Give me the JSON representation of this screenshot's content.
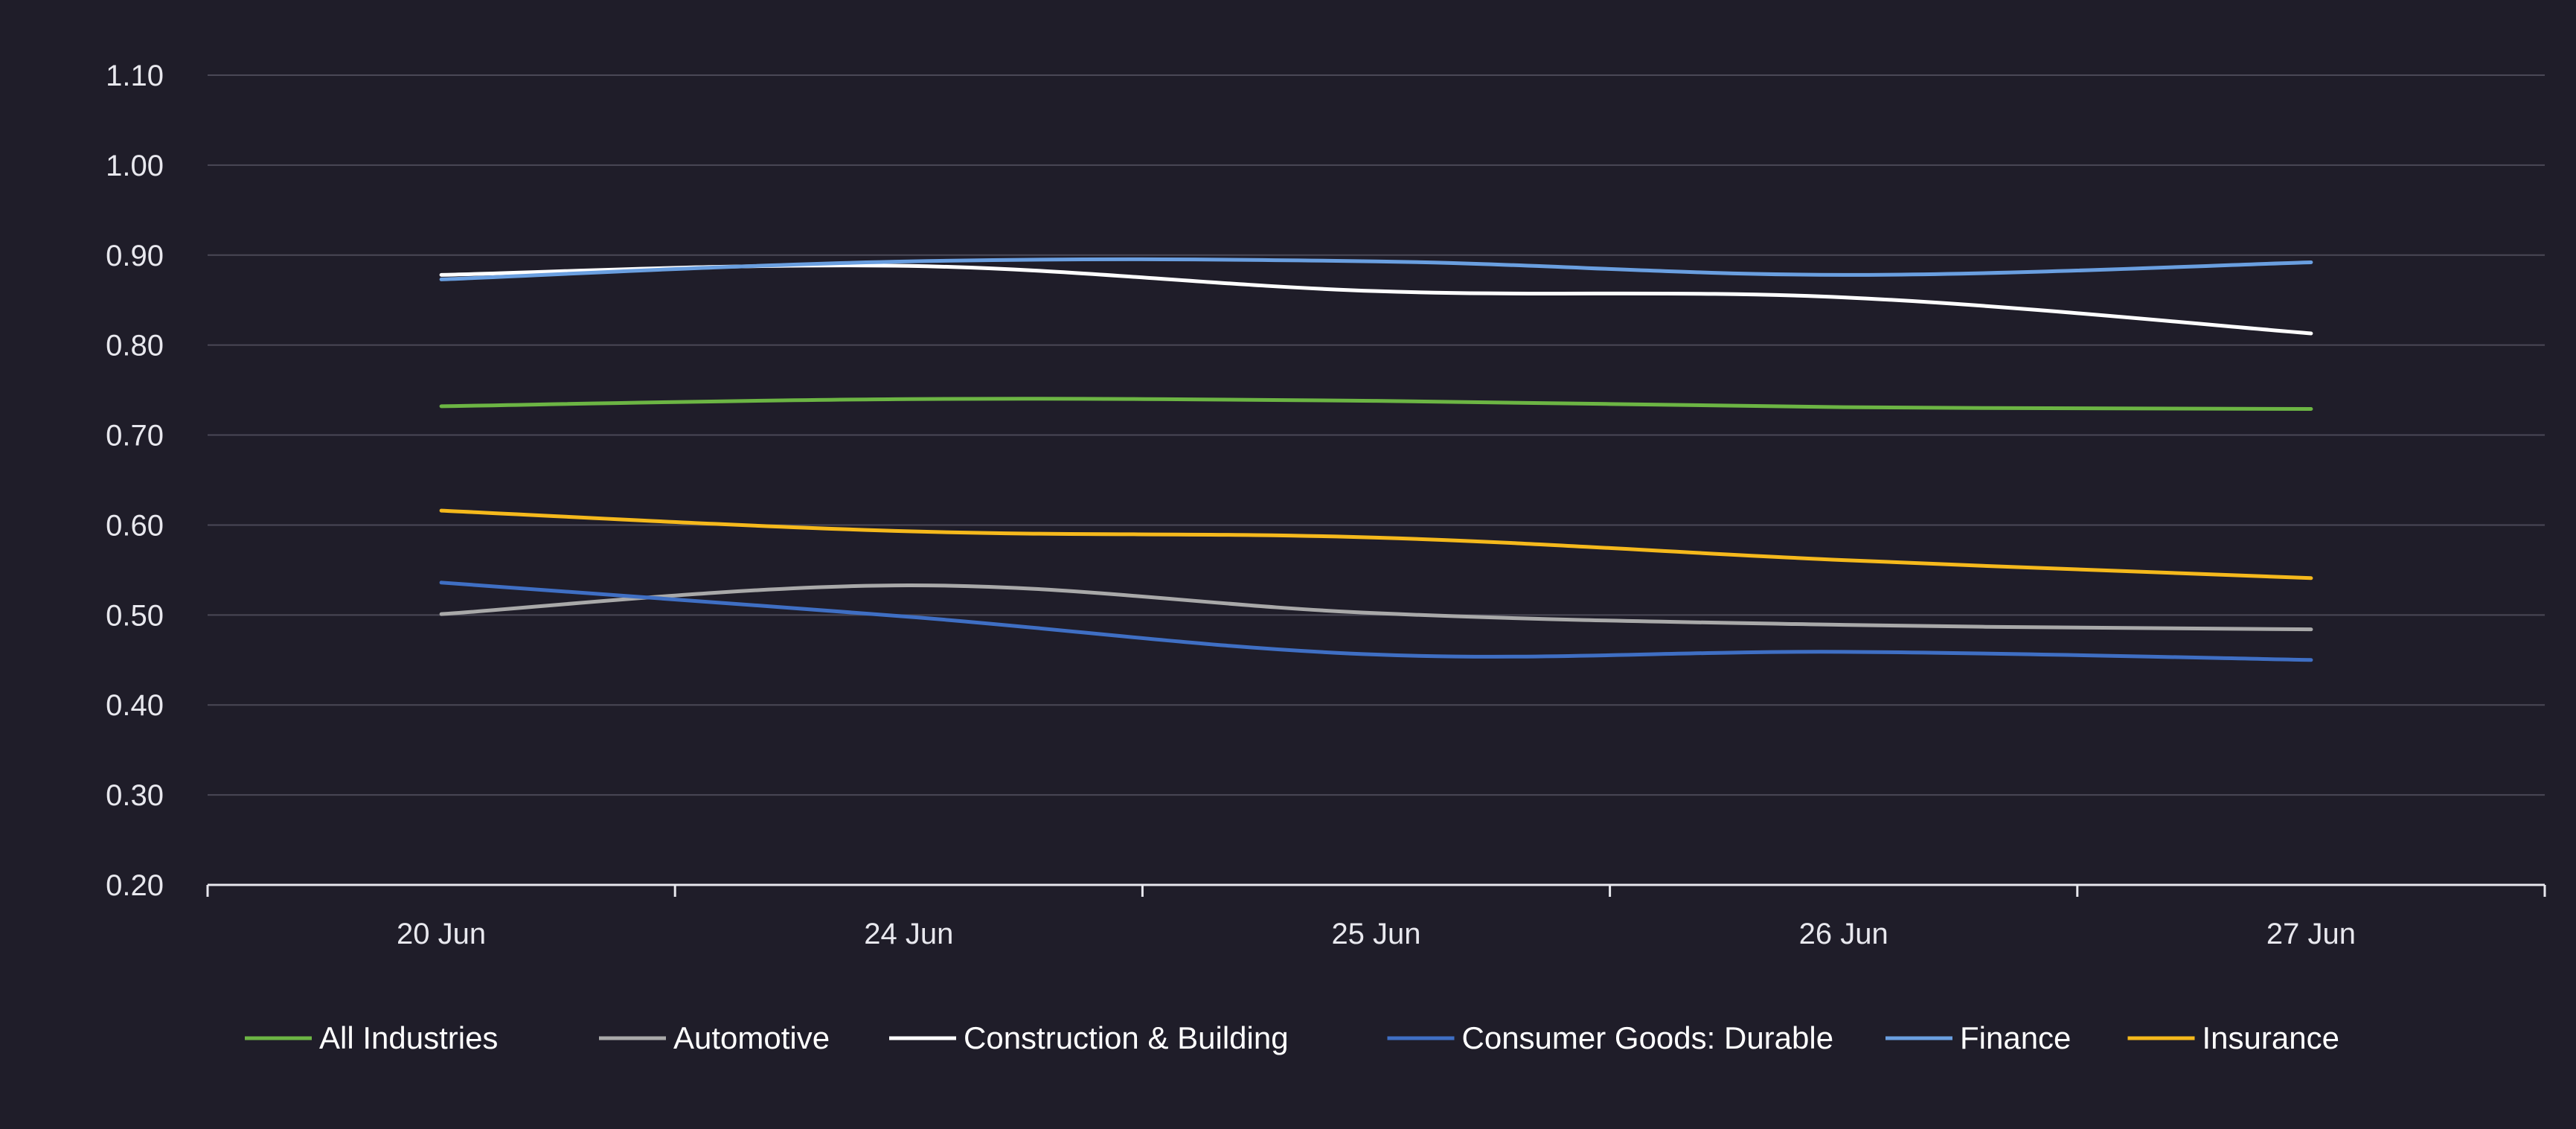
{
  "chart_data": {
    "type": "line",
    "categories": [
      "20 Jun",
      "24 Jun",
      "25 Jun",
      "26 Jun",
      "27 Jun"
    ],
    "ylim": [
      0.2,
      1.1
    ],
    "yticks": [
      "0.20",
      "0.30",
      "0.40",
      "0.50",
      "0.60",
      "0.70",
      "0.80",
      "0.90",
      "1.00",
      "1.10"
    ],
    "grid": true,
    "legend_position": "bottom",
    "series": [
      {
        "name": "All Industries",
        "color": "#6cb544",
        "values": [
          0.732,
          0.74,
          0.738,
          0.731,
          0.729
        ]
      },
      {
        "name": "Automotive",
        "color": "#a9a9a9",
        "values": [
          0.501,
          0.533,
          0.502,
          0.489,
          0.484
        ]
      },
      {
        "name": "Construction & Building",
        "color": "#ffffff",
        "values": [
          0.878,
          0.888,
          0.86,
          0.853,
          0.813
        ]
      },
      {
        "name": "Consumer Goods: Durable",
        "color": "#3f6fc4",
        "values": [
          0.536,
          0.498,
          0.456,
          0.459,
          0.45
        ]
      },
      {
        "name": "Finance",
        "color": "#6a9fe0",
        "values": [
          0.873,
          0.893,
          0.893,
          0.878,
          0.892
        ]
      },
      {
        "name": "Insurance",
        "color": "#f5b91c",
        "values": [
          0.616,
          0.593,
          0.586,
          0.561,
          0.541
        ]
      }
    ]
  }
}
